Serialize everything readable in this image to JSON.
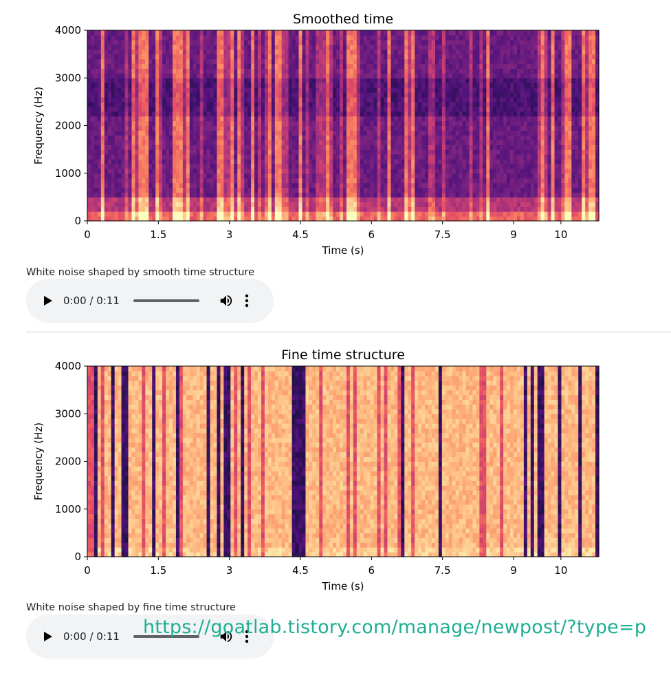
{
  "panels": [
    {
      "title": "Smoothed time",
      "ylabel": "Frequency (Hz)",
      "xlabel": "Time (s)",
      "yticks": [
        "0",
        "1000",
        "2000",
        "3000",
        "4000"
      ],
      "xticks": [
        "0",
        "1.5",
        "3",
        "4.5",
        "6",
        "7.5",
        "9",
        "10"
      ],
      "caption": "White noise shaped by smooth time structure",
      "audio_time": "0:00 / 0:11",
      "colormap": "magma",
      "style": "smooth"
    },
    {
      "title": "Fine time structure",
      "ylabel": "Frequency (Hz)",
      "xlabel": "Time (s)",
      "yticks": [
        "0",
        "1000",
        "2000",
        "3000",
        "4000"
      ],
      "xticks": [
        "0",
        "1.5",
        "3",
        "4.5",
        "6",
        "7.5",
        "9",
        "10"
      ],
      "caption": "White noise shaped by fine time structure",
      "audio_time": "0:00 / 0:11",
      "colormap": "magma",
      "style": "fine"
    }
  ],
  "chart_data": [
    {
      "type": "heatmap",
      "title": "Smoothed time",
      "xlabel": "Time (s)",
      "ylabel": "Frequency (Hz)",
      "xlim": [
        0,
        10.8
      ],
      "ylim": [
        0,
        4000
      ],
      "xticks": [
        0,
        1.5,
        3,
        4.5,
        6,
        7.5,
        9,
        10
      ],
      "yticks": [
        0,
        1000,
        2000,
        3000,
        4000
      ],
      "colormap": "magma"
    },
    {
      "type": "heatmap",
      "title": "Fine time structure",
      "xlabel": "Time (s)",
      "ylabel": "Frequency (Hz)",
      "xlim": [
        0,
        10.8
      ],
      "ylim": [
        0,
        4000
      ],
      "xticks": [
        0,
        1.5,
        3,
        4.5,
        6,
        7.5,
        9,
        10
      ],
      "yticks": [
        0,
        1000,
        2000,
        3000,
        4000
      ],
      "colormap": "magma"
    }
  ],
  "watermark": "https://goatlab.tistory.com/manage/newpost/?type=p",
  "colors": {
    "player_bg": "#f1f3f4",
    "watermark": "#1fae94",
    "divider": "#c8c8c8"
  },
  "icons": [
    "play-icon",
    "volume-icon",
    "more-vert-icon"
  ]
}
